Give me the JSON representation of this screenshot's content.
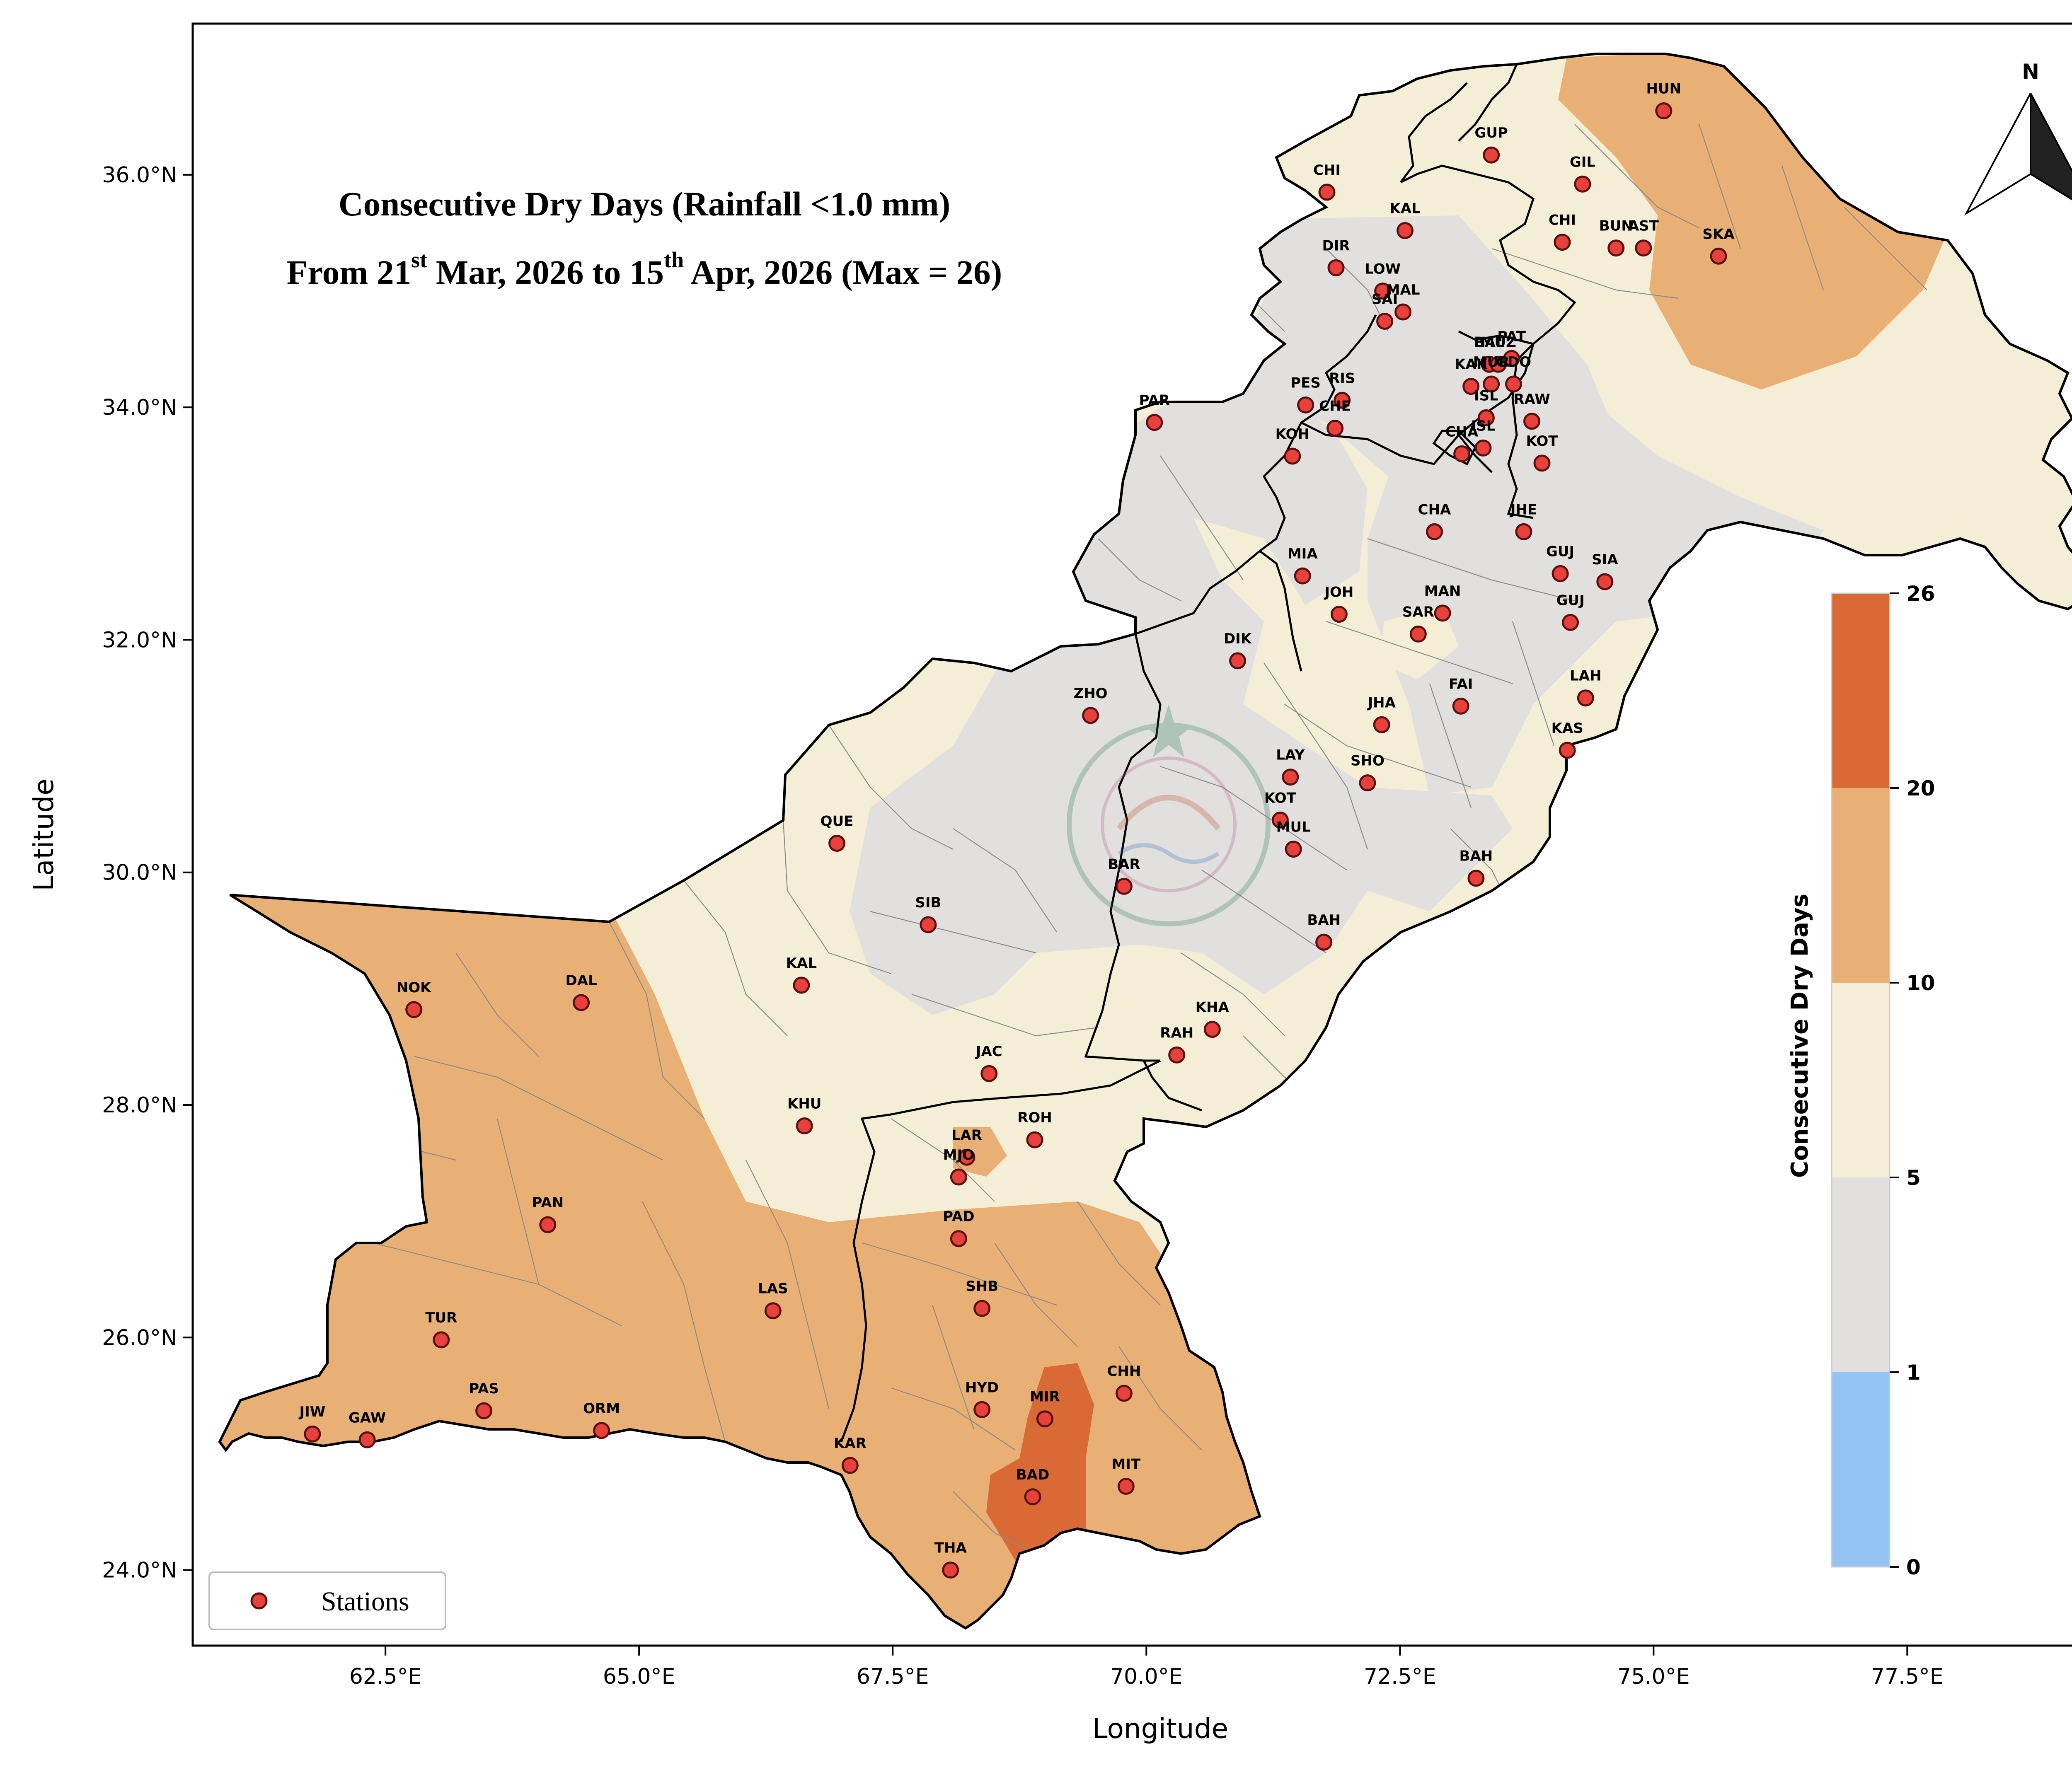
{
  "title": {
    "line1": "Consecutive Dry Days (Rainfall <1.0 mm)",
    "line2_a": "From 21",
    "line2_sup1": "st",
    "line2_b": " Mar, 2026 to 15",
    "line2_sup2": "th",
    "line2_c": " Apr, 2026 (Max = 26)"
  },
  "axes": {
    "xlabel": "Longitude",
    "ylabel": "Latitude",
    "xlim": [
      60.6,
      79.3
    ],
    "ylim": [
      23.35,
      37.3
    ],
    "x_ticks": [
      {
        "value": 62.5,
        "label": "62.5°E"
      },
      {
        "value": 65.0,
        "label": "65.0°E"
      },
      {
        "value": 67.5,
        "label": "67.5°E"
      },
      {
        "value": 70.0,
        "label": "70.0°E"
      },
      {
        "value": 72.5,
        "label": "72.5°E"
      },
      {
        "value": 75.0,
        "label": "75.0°E"
      },
      {
        "value": 77.5,
        "label": "77.5°E"
      }
    ],
    "y_ticks": [
      {
        "value": 24.0,
        "label": "24.0°N"
      },
      {
        "value": 26.0,
        "label": "26.0°N"
      },
      {
        "value": 28.0,
        "label": "28.0°N"
      },
      {
        "value": 30.0,
        "label": "30.0°N"
      },
      {
        "value": 32.0,
        "label": "32.0°N"
      },
      {
        "value": 34.0,
        "label": "34.0°N"
      },
      {
        "value": 36.0,
        "label": "36.0°N"
      }
    ]
  },
  "colorbar": {
    "title": "Consecutive Dry Days",
    "bins": [
      {
        "from": 0,
        "to": 1,
        "color": "#94c4f4"
      },
      {
        "from": 1,
        "to": 5,
        "color": "#e1e0df"
      },
      {
        "from": 5,
        "to": 10,
        "color": "#f5eed6"
      },
      {
        "from": 10,
        "to": 20,
        "color": "#e9b075"
      },
      {
        "from": 20,
        "to": 26,
        "color": "#d96a35"
      }
    ],
    "tick_labels": [
      "0",
      "1",
      "5",
      "10",
      "20",
      "26"
    ]
  },
  "north_arrow": {
    "label": "N"
  },
  "legend": {
    "label": "Stations"
  },
  "colors": {
    "station_fill": "#e8413c",
    "station_edge": "#5a1010",
    "boundary": "#000000",
    "district": "#8a8a8a"
  },
  "chart_data": {
    "type": "map",
    "variable": "Consecutive Dry Days",
    "max_value": 26,
    "stations": [
      {
        "code": "CHI",
        "lon": 71.78,
        "lat": 35.85
      },
      {
        "code": "GUP",
        "lon": 73.4,
        "lat": 36.17
      },
      {
        "code": "HUN",
        "lon": 75.1,
        "lat": 36.55
      },
      {
        "code": "GIL",
        "lon": 74.3,
        "lat": 35.92
      },
      {
        "code": "KAL",
        "lon": 72.55,
        "lat": 35.52
      },
      {
        "code": "DIR",
        "lon": 71.87,
        "lat": 35.2
      },
      {
        "code": "LOW",
        "lon": 72.33,
        "lat": 35.0
      },
      {
        "code": "SAI",
        "lon": 72.35,
        "lat": 34.74
      },
      {
        "code": "MAL",
        "lon": 72.53,
        "lat": 34.82
      },
      {
        "code": "CHI",
        "lon": 74.1,
        "lat": 35.42
      },
      {
        "code": "BUN",
        "lon": 74.63,
        "lat": 35.37
      },
      {
        "code": "AST",
        "lon": 74.9,
        "lat": 35.37
      },
      {
        "code": "SKA",
        "lon": 75.64,
        "lat": 35.3
      },
      {
        "code": "BAL",
        "lon": 73.38,
        "lat": 34.37
      },
      {
        "code": "MUZ",
        "lon": 73.47,
        "lat": 34.37
      },
      {
        "code": "PAT",
        "lon": 73.6,
        "lat": 34.42
      },
      {
        "code": "KAK",
        "lon": 73.2,
        "lat": 34.18
      },
      {
        "code": "GDO",
        "lon": 73.62,
        "lat": 34.2
      },
      {
        "code": "MUR",
        "lon": 73.4,
        "lat": 34.2
      },
      {
        "code": "PES",
        "lon": 71.57,
        "lat": 34.02
      },
      {
        "code": "RIS",
        "lon": 71.93,
        "lat": 34.06
      },
      {
        "code": "CHE",
        "lon": 71.86,
        "lat": 33.82
      },
      {
        "code": "RAW",
        "lon": 73.8,
        "lat": 33.88
      },
      {
        "code": "ISL",
        "lon": 73.35,
        "lat": 33.91
      },
      {
        "code": "ISL",
        "lon": 73.32,
        "lat": 33.65
      },
      {
        "code": "CHA",
        "lon": 73.11,
        "lat": 33.6
      },
      {
        "code": "KOH",
        "lon": 71.44,
        "lat": 33.58
      },
      {
        "code": "KOT",
        "lon": 73.9,
        "lat": 33.52
      },
      {
        "code": "PAR",
        "lon": 70.08,
        "lat": 33.87
      },
      {
        "code": "CHA",
        "lon": 72.84,
        "lat": 32.93
      },
      {
        "code": "JHE",
        "lon": 73.72,
        "lat": 32.93
      },
      {
        "code": "MIA",
        "lon": 71.54,
        "lat": 32.55
      },
      {
        "code": "GUJ",
        "lon": 74.08,
        "lat": 32.57
      },
      {
        "code": "SIA",
        "lon": 74.52,
        "lat": 32.5
      },
      {
        "code": "JOH",
        "lon": 71.9,
        "lat": 32.22
      },
      {
        "code": "MAN",
        "lon": 72.92,
        "lat": 32.23
      },
      {
        "code": "SAR",
        "lon": 72.68,
        "lat": 32.05
      },
      {
        "code": "GUJ",
        "lon": 74.18,
        "lat": 32.15
      },
      {
        "code": "DIK",
        "lon": 70.9,
        "lat": 31.82
      },
      {
        "code": "FAI",
        "lon": 73.1,
        "lat": 31.43
      },
      {
        "code": "LAH",
        "lon": 74.33,
        "lat": 31.5
      },
      {
        "code": "ZHO",
        "lon": 69.45,
        "lat": 31.35
      },
      {
        "code": "JHA",
        "lon": 72.32,
        "lat": 31.27
      },
      {
        "code": "KAS",
        "lon": 74.15,
        "lat": 31.05
      },
      {
        "code": "LAY",
        "lon": 71.42,
        "lat": 30.82
      },
      {
        "code": "SHO",
        "lon": 72.18,
        "lat": 30.77
      },
      {
        "code": "KOT",
        "lon": 71.32,
        "lat": 30.45
      },
      {
        "code": "MUL",
        "lon": 71.45,
        "lat": 30.2
      },
      {
        "code": "QUE",
        "lon": 66.95,
        "lat": 30.25
      },
      {
        "code": "BAR",
        "lon": 69.78,
        "lat": 29.88
      },
      {
        "code": "BAH",
        "lon": 73.25,
        "lat": 29.95
      },
      {
        "code": "SIB",
        "lon": 67.85,
        "lat": 29.55
      },
      {
        "code": "BAH",
        "lon": 71.75,
        "lat": 29.4
      },
      {
        "code": "KAL",
        "lon": 66.6,
        "lat": 29.03
      },
      {
        "code": "NOK",
        "lon": 62.78,
        "lat": 28.82
      },
      {
        "code": "DAL",
        "lon": 64.43,
        "lat": 28.88
      },
      {
        "code": "KHA",
        "lon": 70.65,
        "lat": 28.65
      },
      {
        "code": "RAH",
        "lon": 70.3,
        "lat": 28.43
      },
      {
        "code": "JAC",
        "lon": 68.45,
        "lat": 28.27
      },
      {
        "code": "KHU",
        "lon": 66.63,
        "lat": 27.82
      },
      {
        "code": "ROH",
        "lon": 68.9,
        "lat": 27.7
      },
      {
        "code": "LAR",
        "lon": 68.23,
        "lat": 27.55
      },
      {
        "code": "MJO",
        "lon": 68.15,
        "lat": 27.38
      },
      {
        "code": "PAN",
        "lon": 64.1,
        "lat": 26.97
      },
      {
        "code": "PAD",
        "lon": 68.15,
        "lat": 26.85
      },
      {
        "code": "LAS",
        "lon": 66.32,
        "lat": 26.23
      },
      {
        "code": "SHB",
        "lon": 68.38,
        "lat": 26.25
      },
      {
        "code": "TUR",
        "lon": 63.05,
        "lat": 25.98
      },
      {
        "code": "CHH",
        "lon": 69.78,
        "lat": 25.52
      },
      {
        "code": "PAS",
        "lon": 63.47,
        "lat": 25.37
      },
      {
        "code": "HYD",
        "lon": 68.38,
        "lat": 25.38
      },
      {
        "code": "MIR",
        "lon": 69.0,
        "lat": 25.3
      },
      {
        "code": "JIW",
        "lon": 61.78,
        "lat": 25.17
      },
      {
        "code": "GAW",
        "lon": 62.32,
        "lat": 25.12
      },
      {
        "code": "ORM",
        "lon": 64.63,
        "lat": 25.2
      },
      {
        "code": "KAR",
        "lon": 67.08,
        "lat": 24.9
      },
      {
        "code": "MIT",
        "lon": 69.8,
        "lat": 24.72
      },
      {
        "code": "BAD",
        "lon": 68.88,
        "lat": 24.63
      },
      {
        "code": "THA",
        "lon": 68.07,
        "lat": 24.0
      }
    ]
  }
}
